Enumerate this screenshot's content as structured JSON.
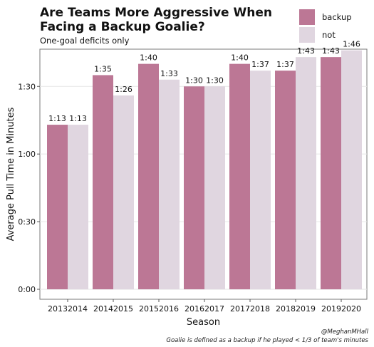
{
  "chart_data": {
    "type": "bar",
    "title": "Are Teams More Aggressive When Facing a Backup Goalie?",
    "subtitle": "One-goal deficits only",
    "xlabel": "Season",
    "ylabel": "Average Pull Time in Minutes",
    "categories": [
      "20132014",
      "20142015",
      "20152016",
      "20162017",
      "20172018",
      "20182019",
      "20192020"
    ],
    "series": [
      {
        "name": "backup",
        "color": "#bc7795",
        "values": [
          73,
          95,
          100,
          90,
          100,
          97,
          103
        ],
        "labels": [
          "1:13",
          "1:35",
          "1:40",
          "1:30",
          "1:40",
          "1:37",
          "1:43"
        ]
      },
      {
        "name": "not",
        "color": "#e0d6e0",
        "values": [
          73,
          86,
          93,
          90,
          97,
          103,
          106
        ],
        "labels": [
          "1:13",
          "1:26",
          "1:33",
          "1:30",
          "1:37",
          "1:43",
          "1:46"
        ]
      }
    ],
    "yticks": [
      0,
      30,
      60,
      90
    ],
    "yticklabels": [
      "0:00",
      "0:30",
      "1:00",
      "1:30"
    ],
    "ylim": [
      0,
      110
    ],
    "grid": true,
    "legend_position": "top-right"
  },
  "caption": {
    "handle": "@MeghanMHall",
    "note": "Goalie is defined as a backup if he played < 1/3 of team's minutes"
  }
}
